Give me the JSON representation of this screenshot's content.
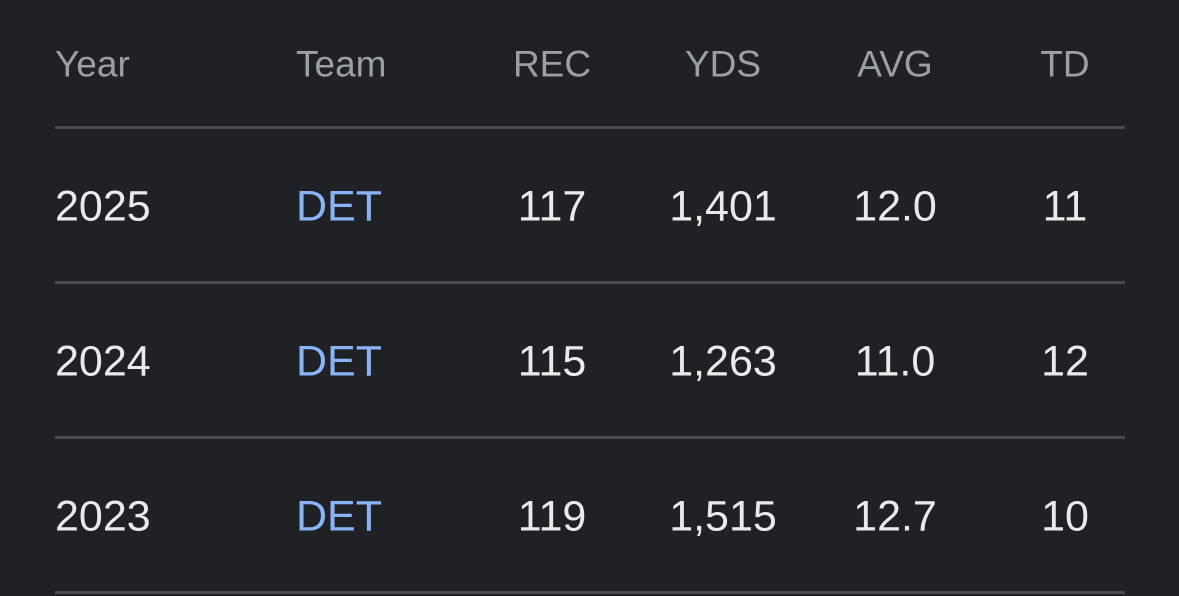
{
  "table": {
    "header": [
      "Year",
      "Team",
      "REC",
      "YDS",
      "AVG",
      "TD"
    ],
    "rows": [
      [
        "2025",
        "DET",
        "117",
        "1,401",
        "12.0",
        "11"
      ],
      [
        "2024",
        "DET",
        "115",
        "1,263",
        "11.0",
        "12"
      ],
      [
        "2023",
        "DET",
        "119",
        "1,515",
        "12.7",
        "10"
      ]
    ]
  }
}
